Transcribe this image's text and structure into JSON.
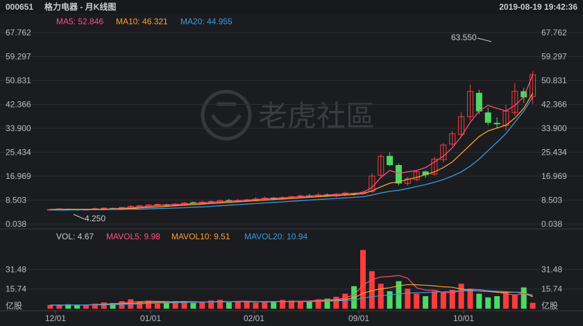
{
  "header": {
    "code": "000651",
    "name": "格力电器 - 月K线图",
    "datetime": "2019-08-19 19:42:36"
  },
  "watermark": "老虎社區",
  "ma_legend": [
    {
      "label": "MA5: 52.846",
      "color": "#ff4f7a"
    },
    {
      "label": "MA10: 46.321",
      "color": "#ff9f2e"
    },
    {
      "label": "MA20: 44.955",
      "color": "#3a9bde"
    }
  ],
  "vol_legend": [
    {
      "label": "VOL: 4.67",
      "color": "#c9cbd1"
    },
    {
      "label": "MAVOL5: 9.98",
      "color": "#ff4f7a"
    },
    {
      "label": "MAVOL10: 9.51",
      "color": "#ff9f2e"
    },
    {
      "label": "MAVOL20: 10.94",
      "color": "#3a9bde"
    }
  ],
  "colors": {
    "up": "#ff3c3c",
    "down": "#4cd964",
    "grid": "#2c2e33",
    "bg": "#1b1c20"
  },
  "chart_data": {
    "type": "candlestick",
    "price_axis": {
      "range": [
        0.038,
        67.762
      ],
      "ticks": [
        "67.762",
        "59.297",
        "50.831",
        "42.366",
        "33.900",
        "25.434",
        "16.969",
        "8.503",
        "0.038"
      ]
    },
    "volume_axis": {
      "range": [
        0,
        47.22
      ],
      "ticks": [
        "31.48",
        "15.74",
        "亿股"
      ]
    },
    "x_ticks": [
      {
        "label": "12/01",
        "index": 1
      },
      {
        "label": "01/01",
        "index": 13
      },
      {
        "label": "02/01",
        "index": 25
      },
      {
        "label": "09/01",
        "index": 37
      },
      {
        "label": "10/01",
        "index": 49
      }
    ],
    "annotations": {
      "high": "63.550",
      "low": "4.250"
    },
    "close": [
      5.2,
      5.4,
      5.3,
      5.0,
      5.2,
      5.5,
      5.7,
      5.6,
      5.9,
      6.3,
      6.5,
      6.8,
      7.0,
      6.7,
      7.1,
      7.5,
      7.4,
      7.8,
      8.0,
      8.3,
      8.1,
      8.4,
      8.6,
      8.9,
      9.2,
      9.0,
      9.4,
      9.7,
      10.0,
      9.8,
      10.3,
      10.1,
      10.6,
      11.0,
      10.8,
      11.3,
      17.0,
      24.0,
      21.0,
      14.5,
      16.0,
      18.5,
      17.5,
      23.0,
      28.0,
      32.0,
      38.0,
      47.0,
      40.0,
      36.0,
      35.5,
      40.0,
      47.0,
      45.0,
      52.846
    ],
    "ma5": [
      5.2,
      5.3,
      5.3,
      5.2,
      5.2,
      5.3,
      5.3,
      5.4,
      5.6,
      5.8,
      6.1,
      6.3,
      6.6,
      6.8,
      6.9,
      7.1,
      7.3,
      7.5,
      7.7,
      7.9,
      8.1,
      8.3,
      8.5,
      8.7,
      8.9,
      9.1,
      9.3,
      9.5,
      9.7,
      9.9,
      10.1,
      10.3,
      10.5,
      10.7,
      10.9,
      11.2,
      13.0,
      16.5,
      19.0,
      18.0,
      18.5,
      19.0,
      20.0,
      22.0,
      24.0,
      27.0,
      31.0,
      36.0,
      40.0,
      42.0,
      41.0,
      40.0,
      42.0,
      45.0,
      52.846
    ],
    "ma10": [
      5.2,
      5.2,
      5.3,
      5.3,
      5.3,
      5.3,
      5.3,
      5.3,
      5.4,
      5.5,
      5.7,
      5.9,
      6.1,
      6.3,
      6.5,
      6.7,
      6.9,
      7.1,
      7.3,
      7.5,
      7.7,
      7.9,
      8.1,
      8.3,
      8.5,
      8.7,
      8.9,
      9.1,
      9.3,
      9.5,
      9.7,
      9.9,
      10.1,
      10.3,
      10.5,
      10.8,
      11.8,
      13.2,
      14.5,
      15.0,
      15.8,
      16.5,
      17.5,
      18.5,
      20.0,
      22.0,
      25.0,
      28.0,
      31.0,
      33.0,
      34.0,
      35.0,
      37.5,
      41.0,
      46.321
    ],
    "ma20": [
      5.0,
      5.0,
      5.0,
      5.1,
      5.1,
      5.1,
      5.1,
      5.2,
      5.2,
      5.3,
      5.3,
      5.4,
      5.5,
      5.6,
      5.7,
      5.8,
      6.0,
      6.1,
      6.3,
      6.5,
      6.7,
      6.9,
      7.1,
      7.3,
      7.5,
      7.7,
      7.9,
      8.1,
      8.3,
      8.5,
      8.7,
      8.9,
      9.1,
      9.3,
      9.5,
      9.7,
      10.3,
      11.0,
      11.6,
      12.0,
      12.6,
      13.3,
      14.0,
      14.8,
      15.8,
      17.0,
      18.5,
      20.5,
      23.0,
      26.0,
      29.0,
      32.0,
      36.0,
      40.0,
      44.955
    ],
    "volume": [
      3.0,
      2.5,
      3.5,
      2.8,
      3.2,
      4.0,
      5.0,
      4.5,
      6.0,
      7.5,
      5.5,
      6.5,
      4.0,
      5.0,
      6.0,
      5.5,
      4.5,
      5.0,
      6.5,
      7.0,
      5.0,
      6.0,
      5.5,
      4.8,
      5.2,
      6.0,
      7.0,
      6.5,
      5.5,
      6.0,
      7.5,
      8.0,
      9.5,
      12.0,
      18.0,
      47.0,
      30.0,
      20.0,
      14.0,
      22.0,
      16.0,
      12.0,
      10.0,
      14.0,
      13.0,
      15.0,
      20.0,
      16.0,
      12.0,
      9.0,
      10.0,
      13.0,
      11.0,
      17.0,
      4.67
    ],
    "mavol5": [
      3.0,
      2.8,
      3.0,
      3.0,
      3.0,
      3.2,
      3.7,
      3.9,
      4.5,
      5.4,
      5.7,
      6.0,
      5.9,
      5.7,
      5.4,
      5.4,
      5.0,
      5.1,
      5.5,
      5.7,
      5.6,
      5.9,
      6.0,
      5.7,
      5.3,
      5.5,
      5.7,
      5.9,
      6.0,
      6.2,
      6.6,
      7.0,
      7.3,
      8.6,
      11.0,
      18.9,
      23.2,
      25.4,
      25.8,
      26.6,
      24.4,
      16.8,
      14.8,
      14.8,
      13.0,
      12.8,
      14.4,
      15.6,
      15.2,
      14.4,
      13.4,
      12.0,
      11.0,
      12.0,
      9.98
    ],
    "mavol10": [
      3.0,
      2.9,
      2.9,
      2.9,
      3.0,
      3.1,
      3.4,
      3.6,
      3.9,
      4.3,
      4.6,
      5.1,
      5.2,
      5.4,
      5.5,
      5.6,
      5.5,
      5.4,
      5.4,
      5.5,
      5.6,
      5.6,
      5.5,
      5.5,
      5.6,
      5.7,
      5.8,
      5.8,
      5.7,
      5.8,
      6.0,
      6.4,
      6.7,
      7.3,
      8.7,
      12.2,
      14.5,
      15.9,
      16.8,
      18.2,
      19.3,
      19.1,
      18.7,
      18.3,
      17.5,
      17.1,
      15.7,
      14.9,
      14.1,
      13.8,
      13.1,
      13.1,
      13.2,
      13.0,
      9.51
    ],
    "mavol20": [
      3.0,
      3.0,
      3.0,
      3.0,
      3.0,
      3.0,
      3.1,
      3.2,
      3.4,
      3.6,
      3.9,
      4.2,
      4.4,
      4.6,
      4.8,
      5.0,
      5.1,
      5.2,
      5.3,
      5.4,
      5.5,
      5.6,
      5.6,
      5.6,
      5.6,
      5.6,
      5.7,
      5.7,
      5.7,
      5.7,
      5.8,
      6.0,
      6.2,
      6.5,
      7.0,
      8.5,
      9.6,
      10.4,
      11.0,
      11.8,
      12.5,
      12.8,
      13.0,
      13.3,
      13.5,
      14.0,
      14.2,
      14.4,
      14.3,
      14.2,
      14.0,
      13.6,
      13.2,
      12.4,
      10.94
    ]
  }
}
